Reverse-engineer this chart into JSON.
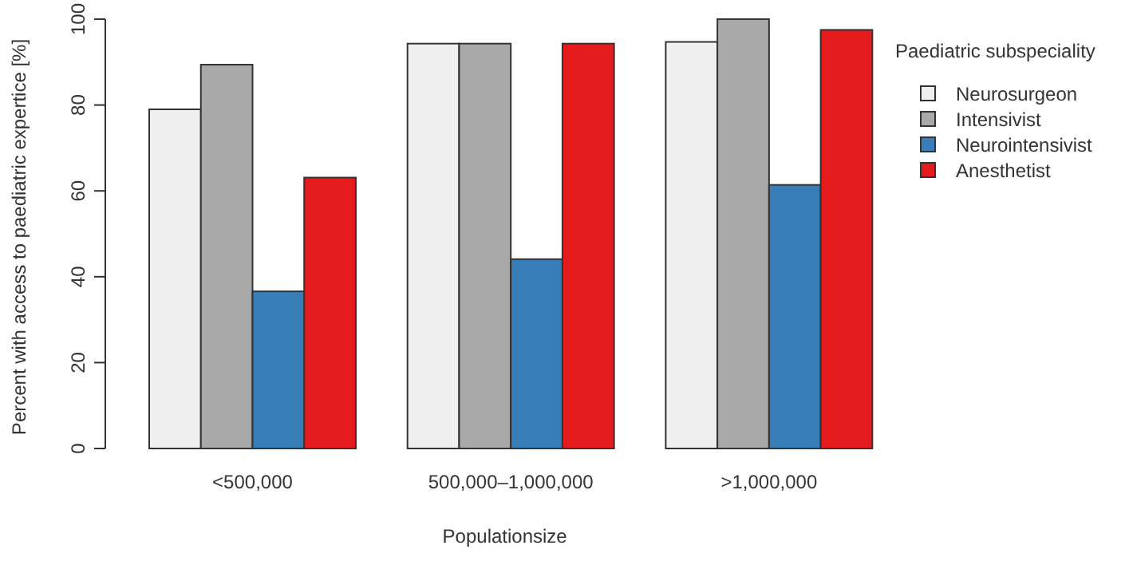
{
  "chart_data": {
    "type": "bar",
    "xlabel": "Populationsize",
    "ylabel": "Percent with access to paediatric expertice [%]",
    "legend_title": "Paediatric subspeciality",
    "legend": "top right",
    "categories": [
      "<500,000",
      "500,000–1,000,000",
      ">1,000,000"
    ],
    "ylim": [
      0,
      100
    ],
    "yticks": [
      0,
      20,
      40,
      60,
      80,
      100
    ],
    "series": [
      {
        "name": "Neurosurgeon",
        "color": "#f0f0f0",
        "values": [
          79,
          94.3,
          94.7
        ]
      },
      {
        "name": "Intensivist",
        "color": "#a9a9a9",
        "values": [
          89.4,
          94.3,
          100
        ]
      },
      {
        "name": "Neurointensivist",
        "color": "#377eb8",
        "values": [
          36.6,
          44.1,
          61.4
        ]
      },
      {
        "name": "Anesthetist",
        "color": "#e41a1c",
        "values": [
          63.1,
          94.3,
          97.5
        ]
      }
    ]
  }
}
